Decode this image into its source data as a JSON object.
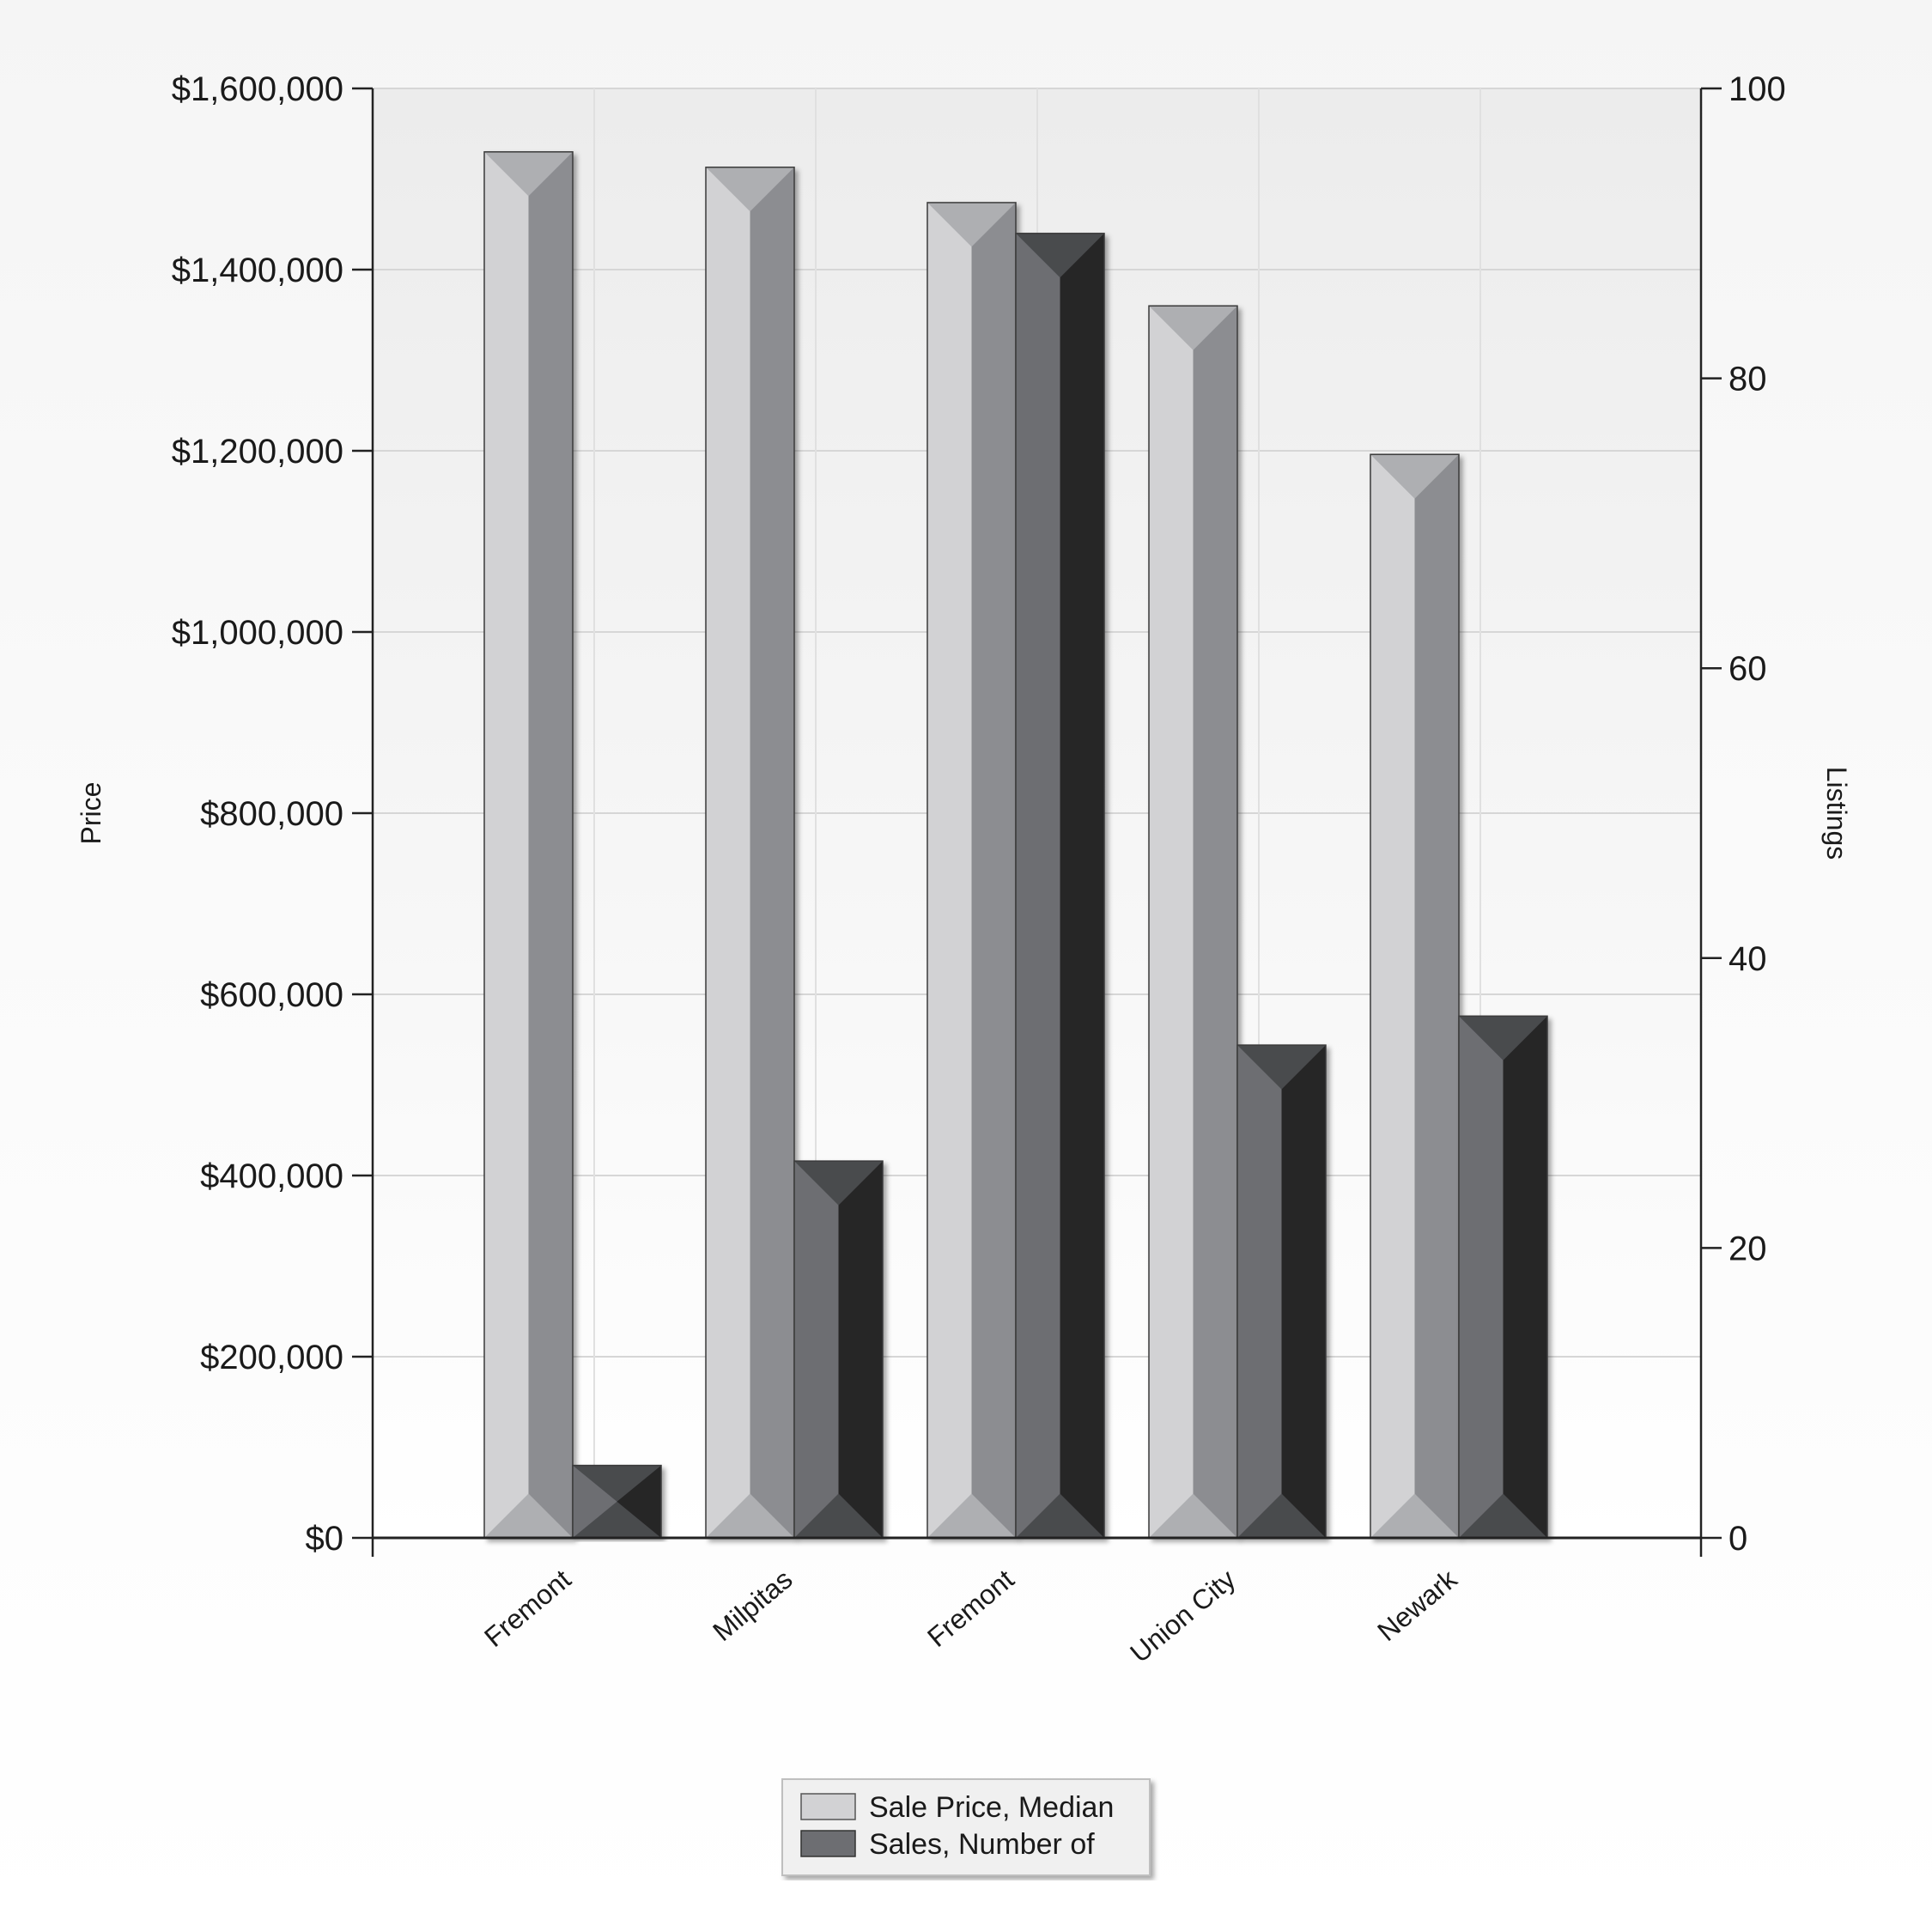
{
  "chart_data": {
    "type": "bar",
    "categories": [
      "Fremont",
      "Milpitas",
      "Fremont",
      "Union City",
      "Newark"
    ],
    "series": [
      {
        "name": "Sale Price, Median",
        "axis": "left",
        "values": [
          1530000,
          1513000,
          1474000,
          1360000,
          1196000
        ],
        "color_light": "#d2d2d4",
        "color_dark": "#8c8d91",
        "color_cap": "#aeafb2"
      },
      {
        "name": "Sales, Number of",
        "axis": "right",
        "values": [
          5,
          26,
          90,
          34,
          36
        ],
        "color_light": "#6d6e72",
        "color_dark": "#252526",
        "color_cap": "#4a4b4e"
      }
    ],
    "y_left": {
      "label": "Price",
      "min": 0,
      "max": 1600000,
      "ticks": [
        0,
        200000,
        400000,
        600000,
        800000,
        1000000,
        1200000,
        1400000,
        1600000
      ],
      "tick_labels": [
        "$0",
        "$200,000",
        "$400,000",
        "$600,000",
        "$800,000",
        "$1,000,000",
        "$1,200,000",
        "$1,400,000",
        "$1,600,000"
      ]
    },
    "y_right": {
      "label": "Listings",
      "min": 0,
      "max": 100,
      "ticks": [
        0,
        20,
        40,
        60,
        80,
        100
      ],
      "tick_labels": [
        "0",
        "20",
        "40",
        "60",
        "80",
        "100"
      ]
    },
    "grid": true,
    "legend": "bottom-center"
  }
}
